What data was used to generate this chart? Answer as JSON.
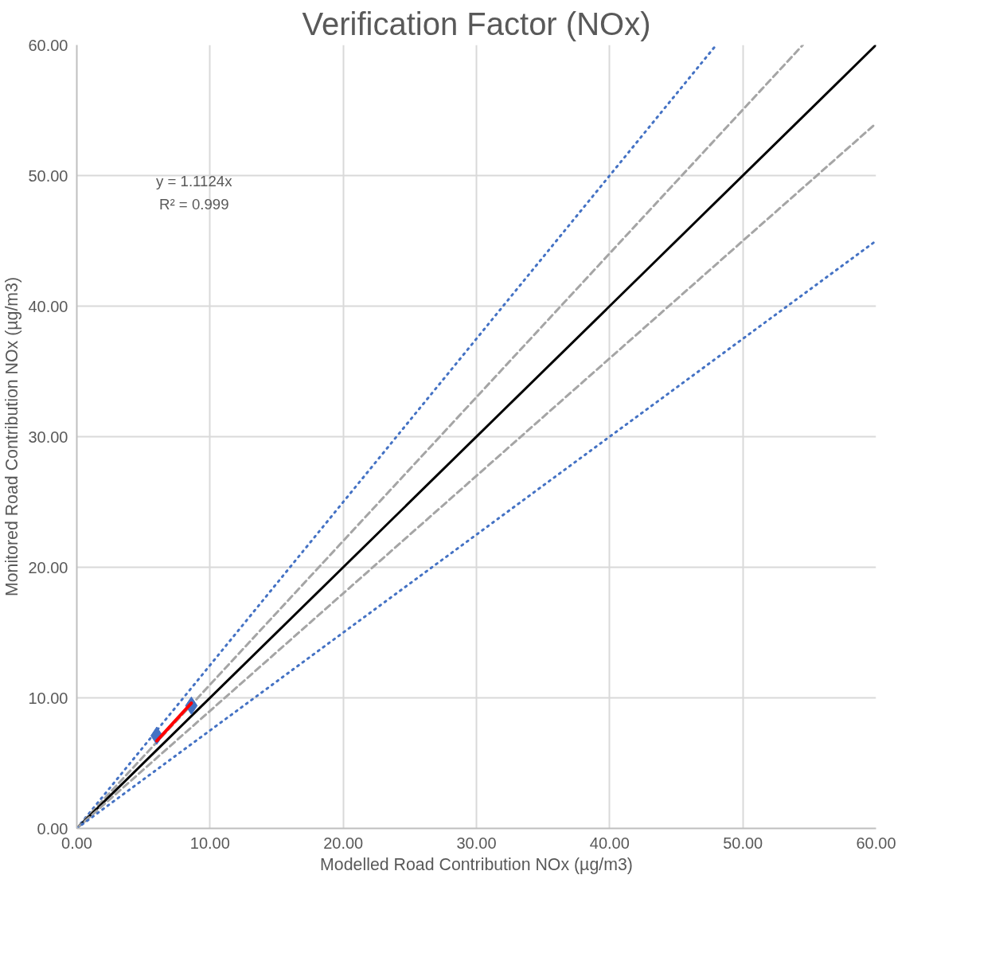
{
  "chart_data": {
    "type": "scatter",
    "title": "Verification Factor (NOx)",
    "xlabel": "Modelled Road Contribution NOx (µg/m3)",
    "ylabel": "Monitored Road Contribution NOx (µg/m3)",
    "annotations": [
      "y = 1.1124x",
      "R² = 0.999"
    ],
    "xlim": [
      0,
      60
    ],
    "ylim": [
      0,
      60
    ],
    "xticks": [
      {
        "value": 0,
        "label": "0.00"
      },
      {
        "value": 10,
        "label": "10.00"
      },
      {
        "value": 20,
        "label": "20.00"
      },
      {
        "value": 30,
        "label": "30.00"
      },
      {
        "value": 40,
        "label": "40.00"
      },
      {
        "value": 50,
        "label": "50.00"
      },
      {
        "value": 60,
        "label": "60.00"
      }
    ],
    "yticks": [
      {
        "value": 0,
        "label": "0.00"
      },
      {
        "value": 10,
        "label": "10.00"
      },
      {
        "value": 20,
        "label": "20.00"
      },
      {
        "value": 30,
        "label": "30.00"
      },
      {
        "value": 40,
        "label": "40.00"
      },
      {
        "value": 50,
        "label": "50.00"
      },
      {
        "value": 60,
        "label": "60.00"
      }
    ],
    "grid": true,
    "series": [
      {
        "type": "line",
        "color": "#4472c4",
        "line_style": "dotted",
        "x": [
          0,
          48
        ],
        "values": [
          0,
          60
        ]
      },
      {
        "type": "line",
        "color": "#a5a5a5",
        "line_style": "dashed",
        "x": [
          0,
          54.5
        ],
        "values": [
          0,
          60
        ]
      },
      {
        "type": "line",
        "color": "#000000",
        "line_style": "solid",
        "x": [
          0,
          60
        ],
        "values": [
          0,
          60
        ]
      },
      {
        "type": "line",
        "color": "#a5a5a5",
        "line_style": "dashed",
        "x": [
          0,
          60
        ],
        "values": [
          0,
          54
        ]
      },
      {
        "type": "line",
        "color": "#4472c4",
        "line_style": "dotted",
        "x": [
          0,
          60
        ],
        "values": [
          0,
          45
        ]
      },
      {
        "color": "#4472c4",
        "marker": "diamond",
        "x": [
          6.0,
          8.6
        ],
        "values": [
          7.1,
          9.4
        ]
      },
      {
        "type": "line",
        "color": "#ff0000",
        "line_style": "solid",
        "x": [
          6.0,
          8.6
        ],
        "values": [
          6.7,
          9.6
        ]
      }
    ]
  }
}
